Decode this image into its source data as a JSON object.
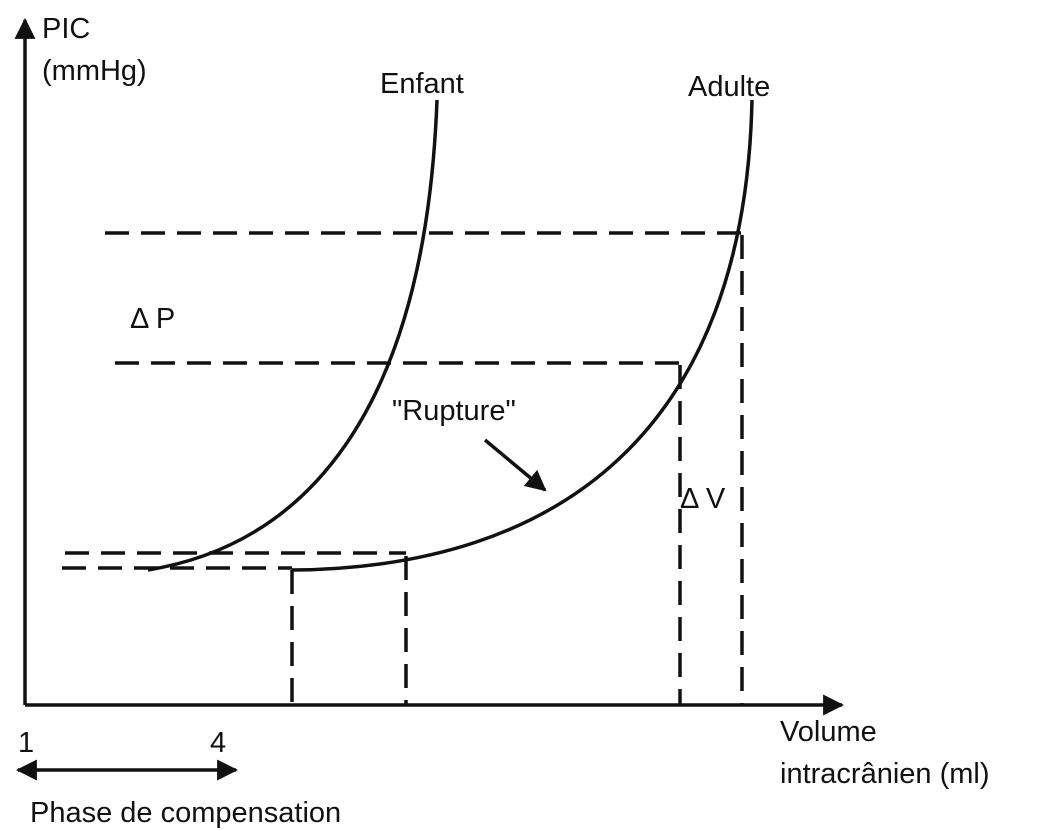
{
  "axes": {
    "y_label": {
      "line1": "PIC",
      "line2": "(mmHg)"
    },
    "x_label": {
      "line1": "Volume",
      "line2": "intracrânien (ml)"
    },
    "x_marks": [
      "1",
      "4"
    ]
  },
  "curves": [
    {
      "label": "Enfant"
    },
    {
      "label": "Adulte"
    }
  ],
  "annotations": {
    "delta_p": "Δ P",
    "delta_v": "Δ V",
    "rupture": "\"Rupture\""
  },
  "phase": "Phase de compensation"
}
